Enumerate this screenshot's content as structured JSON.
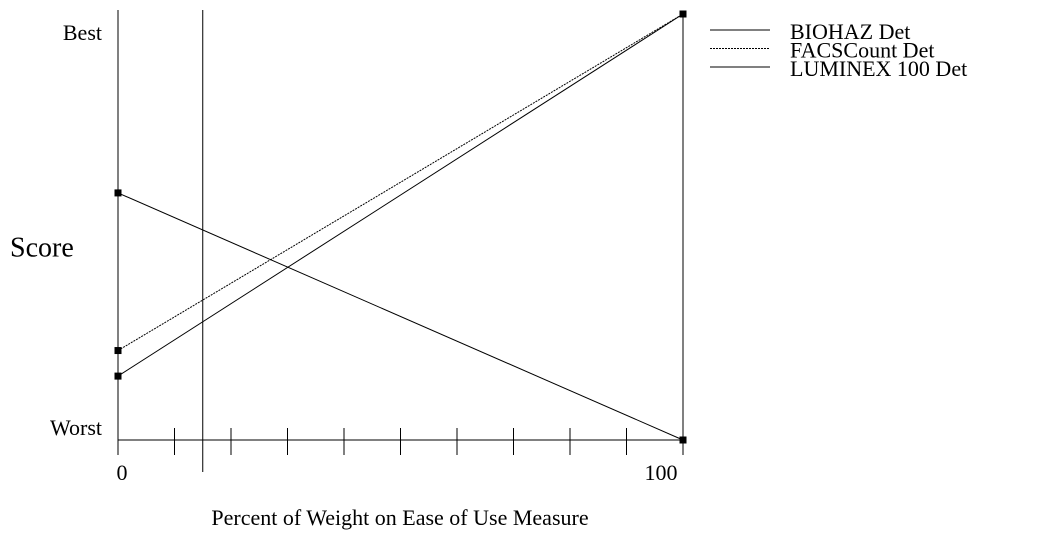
{
  "chart_data": {
    "type": "line",
    "x_label": "Percent of Weight on Ease of Use Measure",
    "y_label": "Score",
    "xlim": [
      0,
      100
    ],
    "xticks": [
      0,
      100
    ],
    "minor_xticks": [
      10,
      20,
      30,
      40,
      50,
      60,
      70,
      80,
      90
    ],
    "ylim": [
      0,
      1
    ],
    "yticks": [
      {
        "value": 1,
        "label": "Best"
      },
      {
        "value": 0,
        "label": "Worst"
      }
    ],
    "current_weight": 15,
    "x": [
      0,
      100
    ],
    "series": [
      {
        "name": "BIOHAZ Det",
        "color": "#000000",
        "dash": "solid",
        "values": [
          0.58,
          0
        ]
      },
      {
        "name": "FACSCount Det",
        "color": "#000000",
        "dash": "dotted",
        "values": [
          0.21,
          1
        ]
      },
      {
        "name": "LUMINEX 100 Det",
        "color": "#000000",
        "dash": "solid",
        "values": [
          0.15,
          1
        ]
      }
    ]
  }
}
